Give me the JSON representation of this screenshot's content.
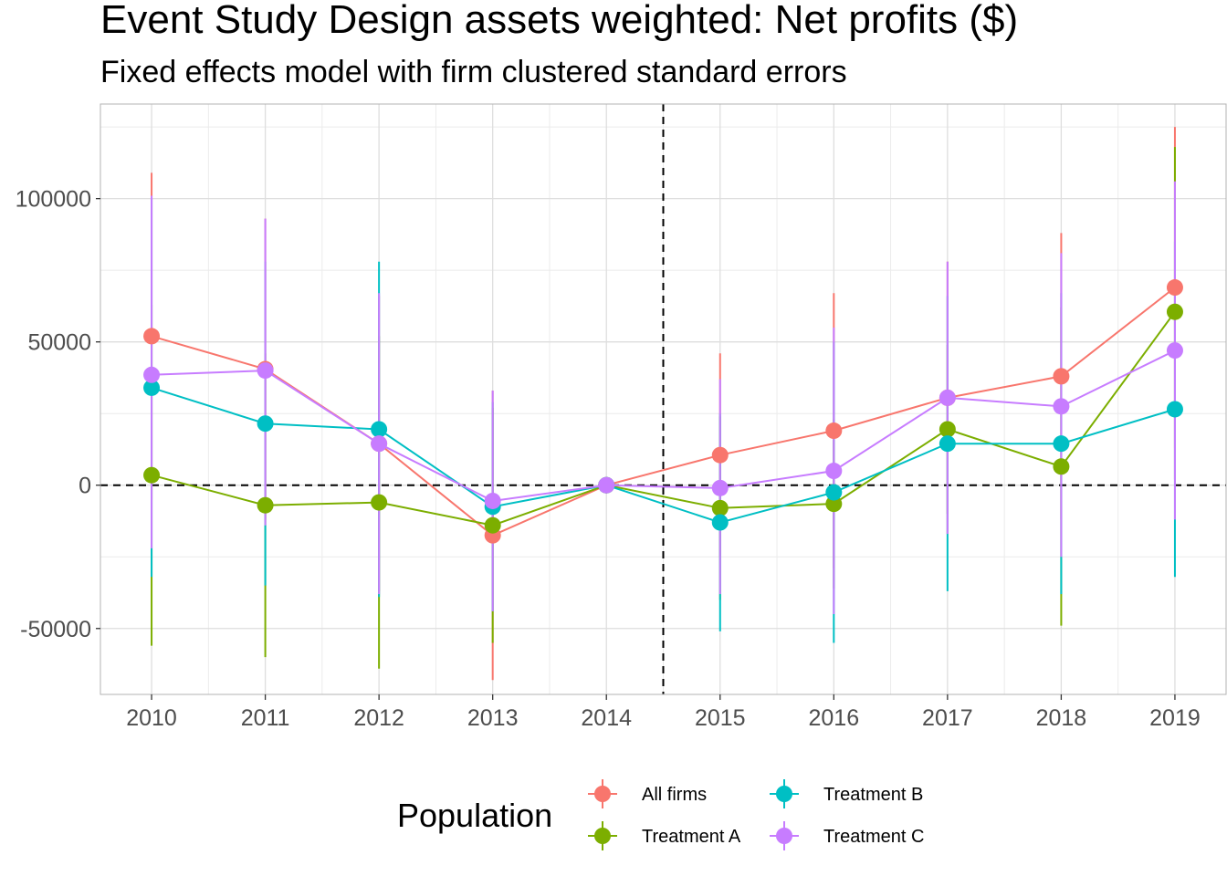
{
  "chart_data": {
    "type": "line",
    "title": "Event Study Design assets weighted: Net profits  ($)",
    "subtitle": "Fixed effects model with firm clustered standard errors",
    "xlabel": "",
    "ylabel": "",
    "x": [
      2010,
      2011,
      2012,
      2013,
      2014,
      2015,
      2016,
      2017,
      2018,
      2019
    ],
    "x_tick_labels": [
      "2010",
      "2011",
      "2012",
      "2013",
      "2014",
      "2015",
      "2016",
      "2017",
      "2018",
      "2019"
    ],
    "y_ticks": [
      -50000,
      0,
      50000,
      100000
    ],
    "y_tick_labels": [
      "-50000",
      "0",
      "50000",
      "100000"
    ],
    "xlim": [
      2009.55,
      2019.45
    ],
    "ylim": [
      -73000,
      133000
    ],
    "grid": true,
    "vline_x": 2014.5,
    "hline_y": 0,
    "legend_title": "Population",
    "legend_position": "bottom",
    "series": [
      {
        "name": "All firms",
        "color": "#F8766D",
        "values": [
          52000,
          40500,
          14500,
          -17500,
          0,
          10500,
          19000,
          30500,
          38000,
          69000
        ],
        "ci_low": [
          -5000,
          -12000,
          -37000,
          -68000,
          0,
          -25000,
          -29000,
          -17000,
          -12000,
          13000
        ],
        "ci_high": [
          109000,
          93000,
          66000,
          33000,
          0,
          46000,
          67000,
          78000,
          88000,
          125000
        ]
      },
      {
        "name": "Treatment A",
        "color": "#7CAE00",
        "values": [
          3500,
          -7000,
          -6000,
          -14000,
          0,
          -8000,
          -6500,
          19500,
          6500,
          60500
        ],
        "ci_low": [
          -56000,
          -60000,
          -64000,
          -55000,
          0,
          -40000,
          -36000,
          -10000,
          -49000,
          2000
        ],
        "ci_high": [
          63000,
          46000,
          52000,
          27000,
          0,
          24000,
          23000,
          49000,
          62000,
          118000
        ]
      },
      {
        "name": "Treatment B",
        "color": "#00BFC4",
        "values": [
          34000,
          21500,
          19500,
          -7500,
          0,
          -13000,
          -2500,
          14500,
          14500,
          26500
        ],
        "ci_low": [
          -32000,
          -35000,
          -39000,
          -44000,
          0,
          -51000,
          -55000,
          -37000,
          -38000,
          -32000
        ],
        "ci_high": [
          100000,
          78000,
          78000,
          29000,
          0,
          25000,
          50000,
          66000,
          67000,
          85000
        ]
      },
      {
        "name": "Treatment C",
        "color": "#C77CFF",
        "values": [
          38500,
          40000,
          14500,
          -5500,
          0,
          -1000,
          5000,
          30500,
          27500,
          47000
        ],
        "ci_low": [
          -22000,
          -14000,
          -38000,
          -44000,
          0,
          -38000,
          -45000,
          -17000,
          -25000,
          -12000
        ],
        "ci_high": [
          101000,
          93000,
          67000,
          33000,
          0,
          37000,
          55000,
          78000,
          81000,
          106000
        ]
      }
    ]
  }
}
